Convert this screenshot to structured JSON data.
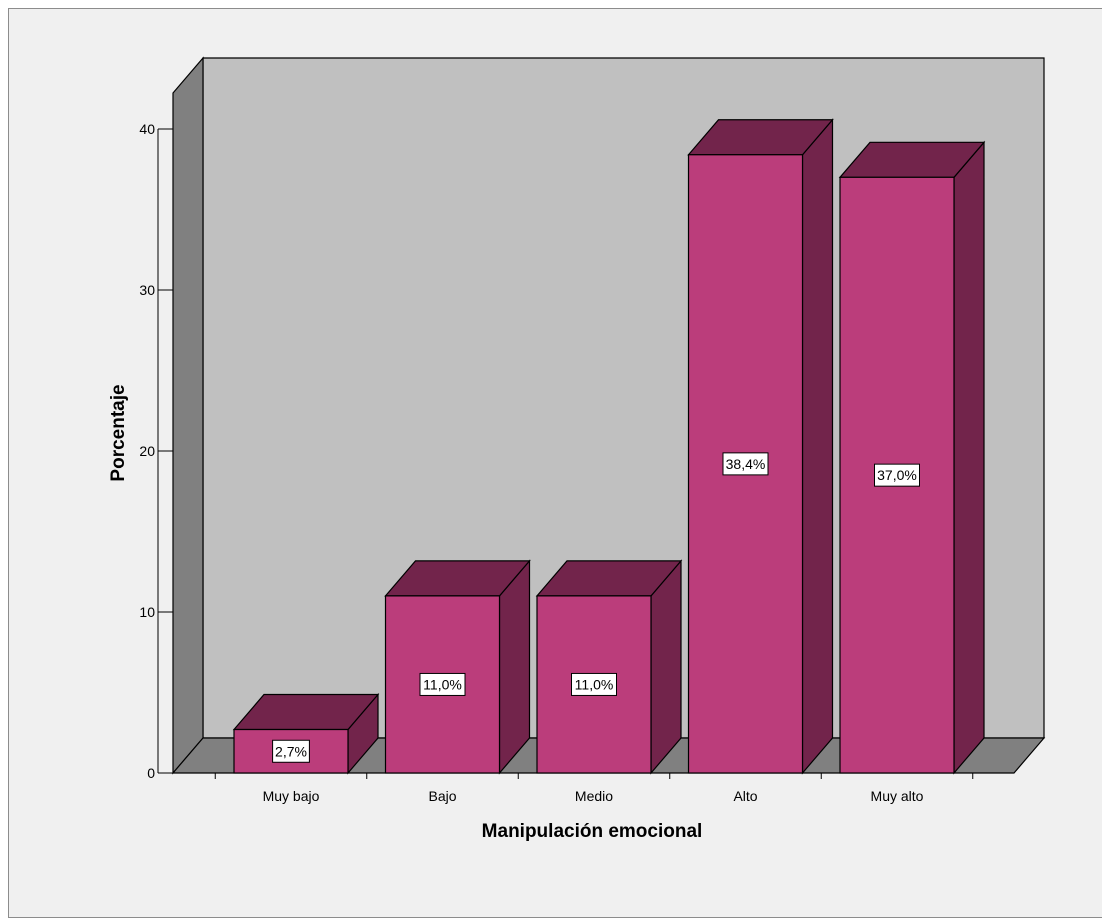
{
  "chart_data": {
    "type": "bar",
    "style": "3d",
    "xlabel": "Manipulación emocional",
    "ylabel": "Porcentaje",
    "categories": [
      "Muy bajo",
      "Bajo",
      "Medio",
      "Alto",
      "Muy alto"
    ],
    "values": [
      2.7,
      11.0,
      11.0,
      38.4,
      37.0
    ],
    "data_labels": [
      "2,7%",
      "11,0%",
      "11,0%",
      "38,4%",
      "37,0%"
    ],
    "y_ticks": [
      0,
      10,
      20,
      30,
      40
    ],
    "ylim": [
      0,
      43
    ],
    "grid": false,
    "legend": "none",
    "colors": {
      "bar_front": "#bb3d7b",
      "bar_top": "#72244b",
      "bar_side": "#72244b",
      "back_wall": "#c0c0c0",
      "side_wall": "#808080",
      "floor": "#808080",
      "background": "#f0f0f0"
    }
  }
}
